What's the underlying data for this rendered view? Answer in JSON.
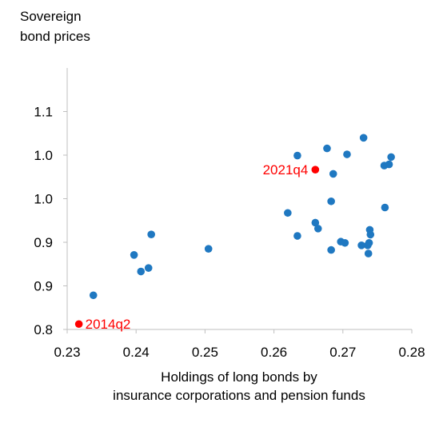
{
  "chart_data": {
    "type": "scatter",
    "ylabel_lines": [
      "Sovereign",
      "bond prices"
    ],
    "xlabel_lines": [
      "Holdings of long bonds by",
      "insurance corporations and pension funds"
    ],
    "xlim": [
      0.23,
      0.28
    ],
    "ylim": [
      0.8,
      1.1
    ],
    "x_ticks": [
      {
        "value": 0.23,
        "label": "0.23"
      },
      {
        "value": 0.24,
        "label": "0.24"
      },
      {
        "value": 0.25,
        "label": "0.25"
      },
      {
        "value": 0.26,
        "label": "0.26"
      },
      {
        "value": 0.27,
        "label": "0.27"
      },
      {
        "value": 0.28,
        "label": "0.28"
      }
    ],
    "y_ticks": [
      {
        "value": 0.8,
        "label": "0.8"
      },
      {
        "value": 0.85,
        "label": "0.9"
      },
      {
        "value": 0.9,
        "label": "0.9"
      },
      {
        "value": 0.95,
        "label": "1.0"
      },
      {
        "value": 1.0,
        "label": "1.0"
      },
      {
        "value": 1.05,
        "label": "1.1"
      }
    ],
    "colors": {
      "points": "#1f78c1",
      "highlight": "#ff0000",
      "axis": "#bfbfbf"
    },
    "points": [
      {
        "x": 0.2338,
        "y": 0.8392
      },
      {
        "x": 0.2397,
        "y": 0.8855
      },
      {
        "x": 0.2407,
        "y": 0.8665
      },
      {
        "x": 0.2418,
        "y": 0.8705
      },
      {
        "x": 0.2422,
        "y": 0.909
      },
      {
        "x": 0.2505,
        "y": 0.8925
      },
      {
        "x": 0.262,
        "y": 0.9337
      },
      {
        "x": 0.2634,
        "y": 0.9073
      },
      {
        "x": 0.2634,
        "y": 0.9995
      },
      {
        "x": 0.266,
        "y": 0.9225
      },
      {
        "x": 0.2664,
        "y": 0.9157
      },
      {
        "x": 0.2677,
        "y": 1.0077
      },
      {
        "x": 0.2683,
        "y": 0.947
      },
      {
        "x": 0.2683,
        "y": 0.8912
      },
      {
        "x": 0.2686,
        "y": 0.9785
      },
      {
        "x": 0.2697,
        "y": 0.9007
      },
      {
        "x": 0.2703,
        "y": 0.8993
      },
      {
        "x": 0.2706,
        "y": 1.0009
      },
      {
        "x": 0.2727,
        "y": 0.8965
      },
      {
        "x": 0.273,
        "y": 1.0199
      },
      {
        "x": 0.2736,
        "y": 0.8965
      },
      {
        "x": 0.2737,
        "y": 0.8871
      },
      {
        "x": 0.2738,
        "y": 0.8993
      },
      {
        "x": 0.2739,
        "y": 0.9143
      },
      {
        "x": 0.274,
        "y": 0.9088
      },
      {
        "x": 0.276,
        "y": 0.988
      },
      {
        "x": 0.2761,
        "y": 0.9399
      },
      {
        "x": 0.2767,
        "y": 0.9894
      },
      {
        "x": 0.277,
        "y": 0.9978
      }
    ],
    "highlights": [
      {
        "label": "2021q4",
        "x": 0.266,
        "y": 0.9833,
        "label_side": "left"
      },
      {
        "label": "2014q2",
        "x": 0.2317,
        "y": 0.8062,
        "label_side": "right"
      }
    ]
  }
}
